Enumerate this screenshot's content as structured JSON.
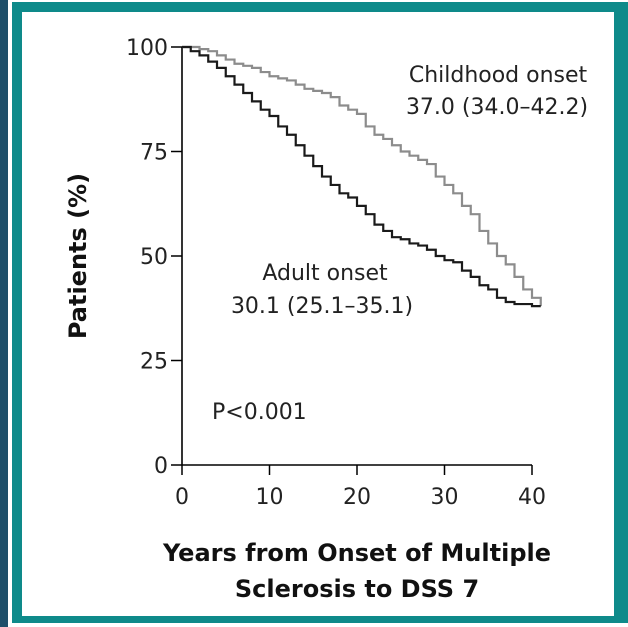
{
  "colors": {
    "frame_teal": "#0e8a8a",
    "left_bar": "#1f4e69",
    "adult_line": "#1a1a1a",
    "childhood_line": "#8c8c8c"
  },
  "chart_data": {
    "type": "line",
    "title": "",
    "xlabel_line1": "Years from Onset of Multiple",
    "xlabel_line2": "Sclerosis to DSS 7",
    "ylabel": "Patients (%)",
    "xlim": [
      0,
      40
    ],
    "ylim": [
      0,
      100
    ],
    "xticks": [
      "0",
      "10",
      "20",
      "30",
      "40"
    ],
    "yticks": [
      "0",
      "25",
      "50",
      "75",
      "100"
    ],
    "grid": false,
    "annotations": {
      "childhood_line1": "Childhood onset",
      "childhood_line2": "37.0 (34.0–42.2)",
      "adult_line1": "Adult onset",
      "adult_line2": "30.1 (25.1–35.1)",
      "pvalue": "P<0.001"
    },
    "series": [
      {
        "name": "Childhood onset",
        "step": true,
        "x": [
          0,
          1,
          2,
          3,
          4,
          5,
          6,
          7,
          8,
          9,
          10,
          11,
          12,
          13,
          14,
          15,
          16,
          17,
          18,
          19,
          20,
          21,
          22,
          23,
          24,
          25,
          26,
          27,
          28,
          29,
          30,
          31,
          32,
          33,
          34,
          35,
          36,
          37,
          38,
          39,
          40,
          41
        ],
        "y": [
          100,
          100,
          99.5,
          99,
          98,
          97,
          96,
          95.5,
          95,
          94,
          93,
          92.5,
          92,
          91,
          90,
          89.5,
          89,
          88,
          86,
          85,
          84,
          81,
          79,
          78,
          76.5,
          75,
          74,
          73,
          72,
          69,
          67,
          65,
          62,
          60,
          56,
          53,
          50,
          48,
          45,
          42,
          40,
          38
        ]
      },
      {
        "name": "Adult onset",
        "step": true,
        "x": [
          0,
          1,
          2,
          3,
          4,
          5,
          6,
          7,
          8,
          9,
          10,
          11,
          12,
          13,
          14,
          15,
          16,
          17,
          18,
          19,
          20,
          21,
          22,
          23,
          24,
          25,
          26,
          27,
          28,
          29,
          30,
          31,
          32,
          33,
          34,
          35,
          36,
          37,
          38,
          39,
          40,
          41
        ],
        "y": [
          100,
          99,
          98,
          96.5,
          95,
          93,
          91,
          89,
          87,
          85,
          83.5,
          81,
          79,
          76.5,
          74,
          71.5,
          69,
          67,
          65,
          64,
          62,
          60,
          57.5,
          56,
          54.5,
          54,
          53,
          52.5,
          51.5,
          50,
          49,
          48.5,
          46.5,
          45,
          43,
          42,
          40,
          39,
          38.5,
          38.5,
          38,
          38
        ]
      }
    ]
  }
}
